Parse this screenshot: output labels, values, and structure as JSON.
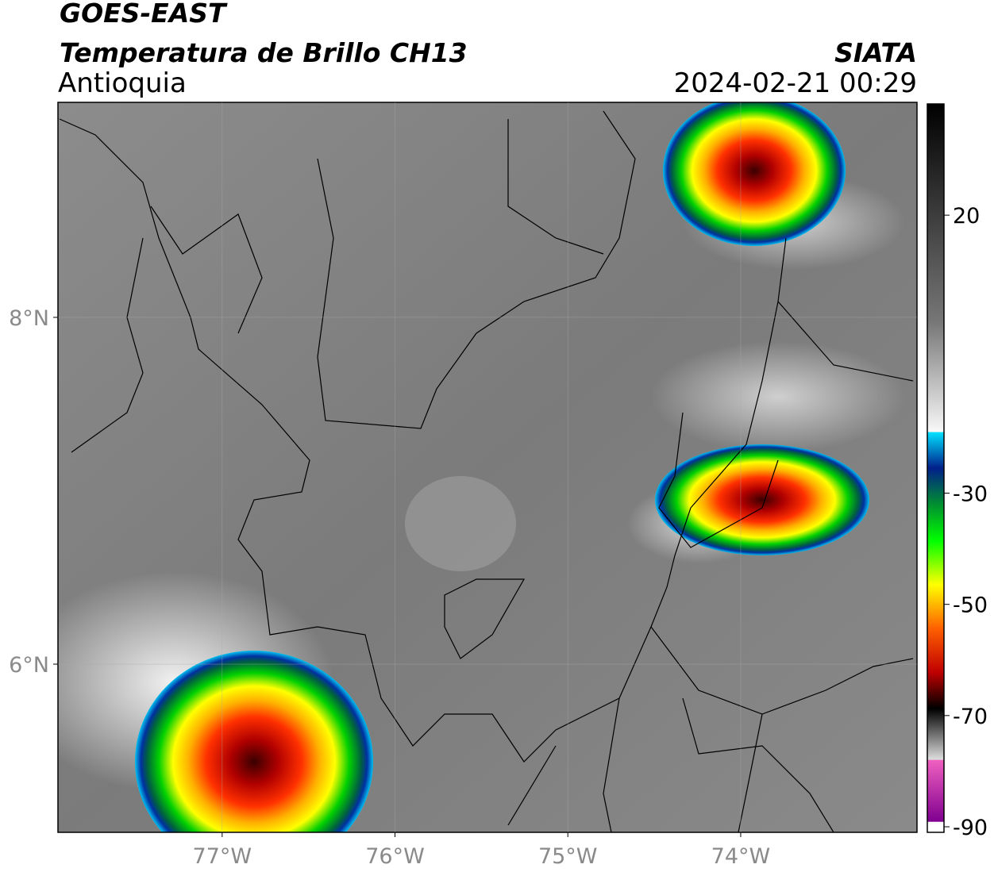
{
  "header": {
    "title": "GOES-EAST",
    "subtitle": "Temperatura de Brillo CH13",
    "region": "Antioquia",
    "source": "SIATA",
    "datetime": "2024-02-21 00:29"
  },
  "map": {
    "lonlim": [
      -77.95,
      -72.98
    ],
    "latlim": [
      5.03,
      9.24
    ],
    "lonticks": [
      {
        "value": -77,
        "label": "77°W"
      },
      {
        "value": -76,
        "label": "76°W"
      },
      {
        "value": -75,
        "label": "75°W"
      },
      {
        "value": -74,
        "label": "74°W"
      }
    ],
    "latticks": [
      {
        "value": 8,
        "label": "8°N"
      },
      {
        "value": 6,
        "label": "6°N"
      }
    ],
    "grid": true
  },
  "colorbar": {
    "lim": [
      -91,
      40
    ],
    "ticks": [
      20,
      -30,
      -50,
      -70,
      -90
    ]
  }
}
